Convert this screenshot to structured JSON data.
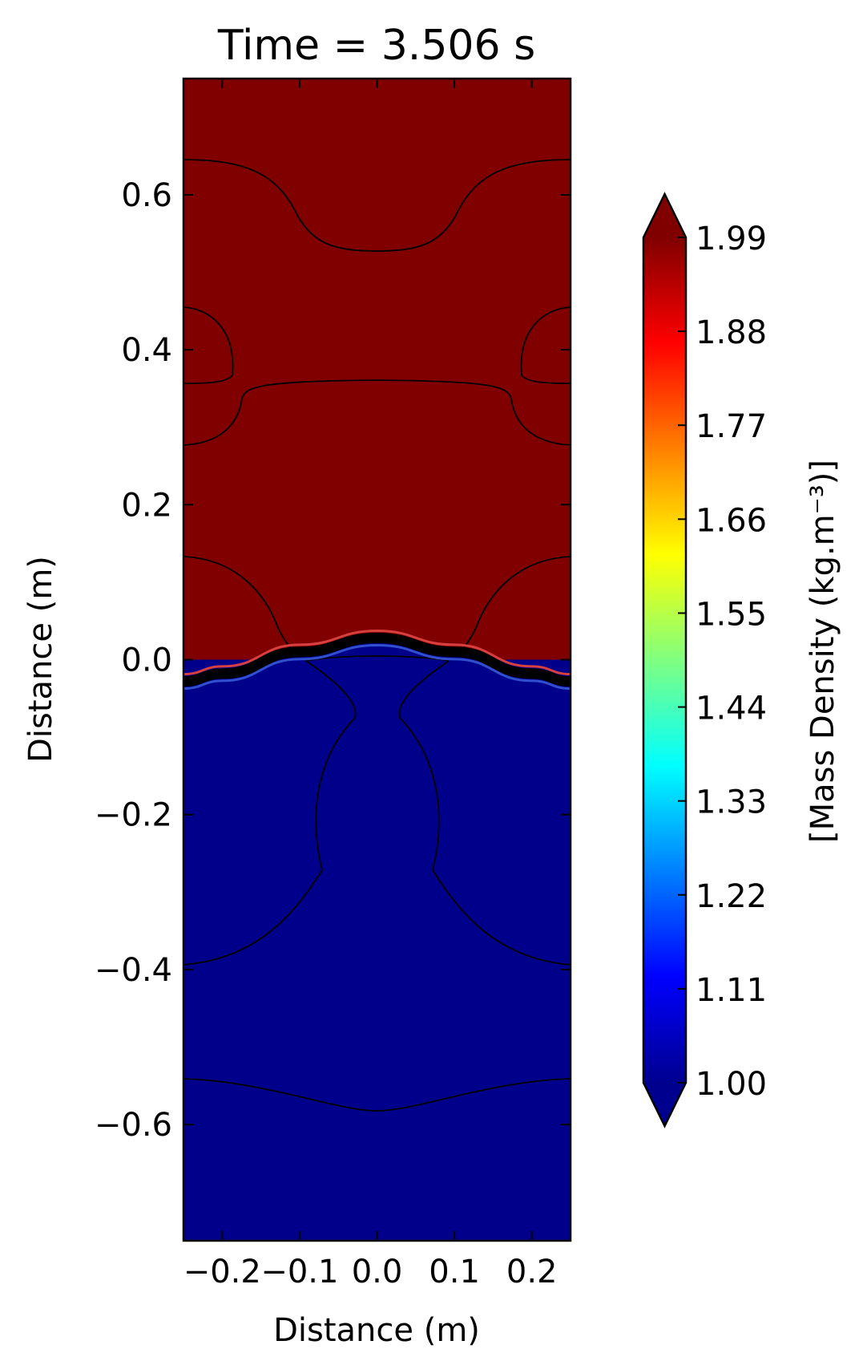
{
  "chart_data": {
    "type": "heatmap",
    "title": "Time = 3.506 s",
    "xlabel": "Distance (m)",
    "ylabel": "Distance (m)",
    "xlim": [
      -0.25,
      0.25
    ],
    "ylim": [
      -0.75,
      0.75
    ],
    "x_ticks": [
      {
        "value": -0.2,
        "label": "−0.2"
      },
      {
        "value": -0.1,
        "label": "−0.1"
      },
      {
        "value": 0.0,
        "label": "0.0"
      },
      {
        "value": 0.1,
        "label": "0.1"
      },
      {
        "value": 0.2,
        "label": "0.2"
      }
    ],
    "y_ticks": [
      {
        "value": 0.6,
        "label": "0.6"
      },
      {
        "value": 0.4,
        "label": "0.4"
      },
      {
        "value": 0.2,
        "label": "0.2"
      },
      {
        "value": 0.0,
        "label": "0.0"
      },
      {
        "value": -0.2,
        "label": "−0.2"
      },
      {
        "value": -0.4,
        "label": "−0.4"
      },
      {
        "value": -0.6,
        "label": "−0.6"
      }
    ],
    "fields": [
      {
        "region": "upper",
        "density": 1.99,
        "color": "#800000"
      },
      {
        "region": "lower",
        "density": 1.0,
        "color": "#00008a"
      }
    ],
    "interface": {
      "x": [
        -0.25,
        -0.2,
        -0.1,
        0.0,
        0.1,
        0.2,
        0.25
      ],
      "y": [
        -0.028,
        -0.018,
        0.01,
        0.028,
        0.01,
        -0.018,
        -0.028
      ]
    },
    "colorbar": {
      "label": "[Mass Density (kg.m⁻³)]",
      "min": 1.0,
      "max": 1.99,
      "extend": "both",
      "ticks": [
        {
          "value": 1.99,
          "label": "1.99"
        },
        {
          "value": 1.88,
          "label": "1.88"
        },
        {
          "value": 1.77,
          "label": "1.77"
        },
        {
          "value": 1.66,
          "label": "1.66"
        },
        {
          "value": 1.55,
          "label": "1.55"
        },
        {
          "value": 1.44,
          "label": "1.44"
        },
        {
          "value": 1.33,
          "label": "1.33"
        },
        {
          "value": 1.22,
          "label": "1.22"
        },
        {
          "value": 1.11,
          "label": "1.11"
        },
        {
          "value": 1.0,
          "label": "1.00"
        }
      ],
      "colormap": [
        "#00008f",
        "#0000ff",
        "#0080ff",
        "#00ffff",
        "#80ff80",
        "#ffff00",
        "#ff8000",
        "#ff0000",
        "#800000"
      ]
    }
  }
}
